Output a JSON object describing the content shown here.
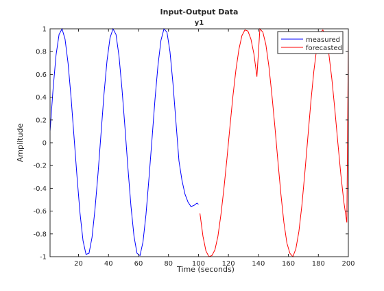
{
  "chart_data": {
    "type": "line",
    "title": "Input-Output Data",
    "subtitle": "y1",
    "xlabel": "Time (seconds)",
    "ylabel": "Amplitude",
    "xlim": [
      1,
      200
    ],
    "ylim": [
      -1,
      1
    ],
    "x_ticks": [
      20,
      40,
      60,
      80,
      100,
      120,
      140,
      160,
      180,
      200
    ],
    "x_tick_labels": [
      "20",
      "40",
      "60",
      "80",
      "100",
      "120",
      "140",
      "160",
      "180",
      "200"
    ],
    "y_ticks": [
      -1,
      -0.8,
      -0.6,
      -0.4,
      -0.2,
      0,
      0.2,
      0.4,
      0.6,
      0.8,
      1
    ],
    "y_tick_labels": [
      "-1",
      "-0.8",
      "-0.6",
      "-0.4",
      "-0.2",
      "0",
      "0.2",
      "0.4",
      "0.6",
      "0.8",
      "1"
    ],
    "grid": false,
    "legend_position": "top-right",
    "series": [
      {
        "name": "measured",
        "color": "#0000ff",
        "x": [
          1,
          3,
          5,
          7,
          9,
          11,
          13,
          15,
          17,
          19,
          21,
          23,
          25,
          27,
          29,
          31,
          33,
          35,
          37,
          39,
          41,
          43,
          45,
          47,
          49,
          51,
          53,
          55,
          57,
          59,
          61,
          63,
          65,
          67,
          69,
          71,
          73,
          75,
          77,
          79,
          81,
          83,
          85,
          87,
          89,
          91,
          93,
          95,
          97,
          99,
          100
        ],
        "y": [
          0.1,
          0.47,
          0.77,
          0.95,
          1.0,
          0.91,
          0.7,
          0.4,
          0.05,
          -0.3,
          -0.62,
          -0.86,
          -0.98,
          -0.97,
          -0.83,
          -0.58,
          -0.27,
          0.08,
          0.43,
          0.72,
          0.92,
          1.0,
          0.95,
          0.76,
          0.47,
          0.13,
          -0.23,
          -0.56,
          -0.82,
          -0.97,
          -0.99,
          -0.87,
          -0.63,
          -0.31,
          0.03,
          0.38,
          0.68,
          0.9,
          1.0,
          0.97,
          0.8,
          0.52,
          0.18,
          -0.16,
          -0.33,
          -0.45,
          -0.52,
          -0.56,
          -0.55,
          -0.53,
          -0.54
        ]
      },
      {
        "name": "forecasted",
        "color": "#ff0000",
        "x": [
          101,
          103,
          105,
          107,
          109,
          111,
          113,
          115,
          117,
          119,
          121,
          123,
          125,
          127,
          129,
          131,
          133,
          135,
          137,
          139,
          141,
          143,
          145,
          147,
          149,
          151,
          153,
          155,
          157,
          159,
          161,
          163,
          165,
          167,
          169,
          171,
          173,
          175,
          177,
          179,
          181,
          183,
          185,
          187,
          189,
          191,
          193,
          195,
          197,
          199,
          200
        ],
        "y": [
          -0.62,
          -0.82,
          -0.95,
          -1.0,
          -0.99,
          -0.94,
          -0.82,
          -0.63,
          -0.4,
          -0.14,
          0.14,
          0.41,
          0.64,
          0.82,
          0.94,
          0.99,
          0.98,
          0.91,
          0.78,
          0.58,
          1.0,
          0.97,
          0.86,
          0.67,
          0.42,
          0.14,
          -0.16,
          -0.45,
          -0.7,
          -0.88,
          -0.97,
          -1.0,
          -0.93,
          -0.78,
          -0.55,
          -0.26,
          0.05,
          0.36,
          0.63,
          0.84,
          0.96,
          0.99,
          0.93,
          0.78,
          0.56,
          0.29,
          0.0,
          -0.28,
          -0.52,
          -0.7,
          0.91
        ]
      }
    ]
  }
}
